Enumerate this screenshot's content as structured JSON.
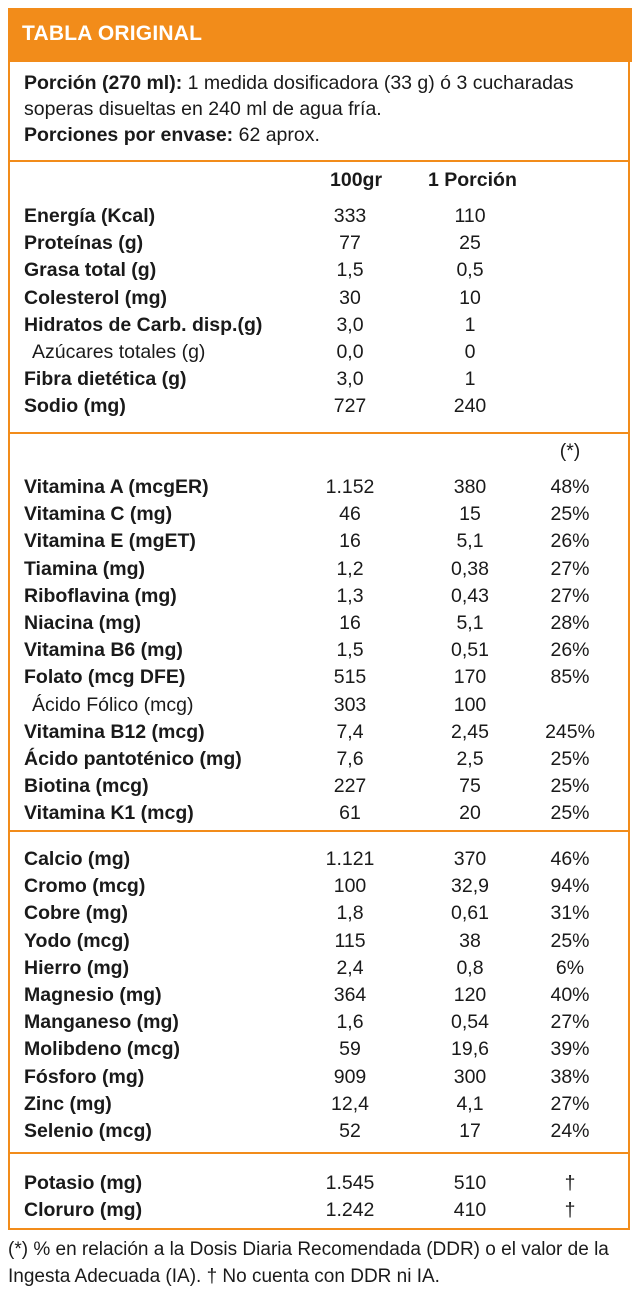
{
  "header": {
    "title": "TABLA ORIGINAL"
  },
  "serving": {
    "portion_label": "Porción (270 ml):",
    "portion_text": "1 medida dosificadora (33 g) ó 3 cucharadas soperas disueltas en 240 ml de agua fría.",
    "per_container_label": "Porciones por envase:",
    "per_container_text": "62 aprox."
  },
  "columns": {
    "per100": "100gr",
    "per_portion": "1 Porción",
    "pct_marker": "(*)"
  },
  "sections": [
    {
      "rows": [
        {
          "name": "Energía (Kcal)",
          "v100": "333",
          "vp": "110",
          "pct": "",
          "bold": true
        },
        {
          "name": "Proteínas (g)",
          "v100": "77",
          "vp": "25",
          "pct": "",
          "bold": true
        },
        {
          "name": "Grasa total (g)",
          "v100": "1,5",
          "vp": "0,5",
          "pct": "",
          "bold": true
        },
        {
          "name": "Colesterol (mg)",
          "v100": "30",
          "vp": "10",
          "pct": "",
          "bold": true
        },
        {
          "name": "Hidratos de Carb. disp.(g)",
          "v100": "3,0",
          "vp": "1",
          "pct": "",
          "bold": true
        },
        {
          "name": "Azúcares totales (g)",
          "v100": "0,0",
          "vp": "0",
          "pct": "",
          "bold": false
        },
        {
          "name": "Fibra dietética (g)",
          "v100": "3,0",
          "vp": "1",
          "pct": "",
          "bold": true
        },
        {
          "name": "Sodio (mg)",
          "v100": "727",
          "vp": "240",
          "pct": "",
          "bold": true
        }
      ]
    },
    {
      "rows": [
        {
          "name": "Vitamina A (mcgER)",
          "v100": "1.152",
          "vp": "380",
          "pct": "48%",
          "bold": true
        },
        {
          "name": "Vitamina C (mg)",
          "v100": "46",
          "vp": "15",
          "pct": "25%",
          "bold": true
        },
        {
          "name": "Vitamina E (mgET)",
          "v100": "16",
          "vp": "5,1",
          "pct": "26%",
          "bold": true
        },
        {
          "name": "Tiamina (mg)",
          "v100": "1,2",
          "vp": "0,38",
          "pct": "27%",
          "bold": true
        },
        {
          "name": "Riboflavina (mg)",
          "v100": "1,3",
          "vp": "0,43",
          "pct": "27%",
          "bold": true
        },
        {
          "name": "Niacina (mg)",
          "v100": "16",
          "vp": "5,1",
          "pct": "28%",
          "bold": true
        },
        {
          "name": "Vitamina B6 (mg)",
          "v100": "1,5",
          "vp": "0,51",
          "pct": "26%",
          "bold": true
        },
        {
          "name": "Folato (mcg DFE)",
          "v100": "515",
          "vp": "170",
          "pct": "85%",
          "bold": true
        },
        {
          "name": "Ácido Fólico (mcg)",
          "v100": "303",
          "vp": "100",
          "pct": "",
          "bold": false
        },
        {
          "name": "Vitamina B12 (mcg)",
          "v100": "7,4",
          "vp": "2,45",
          "pct": "245%",
          "bold": true
        },
        {
          "name": "Ácido pantoténico (mg)",
          "v100": "7,6",
          "vp": "2,5",
          "pct": "25%",
          "bold": true
        },
        {
          "name": "Biotina (mcg)",
          "v100": "227",
          "vp": "75",
          "pct": "25%",
          "bold": true
        },
        {
          "name": "Vitamina K1 (mcg)",
          "v100": "61",
          "vp": "20",
          "pct": "25%",
          "bold": true
        }
      ]
    },
    {
      "rows": [
        {
          "name": "Calcio (mg)",
          "v100": "1.121",
          "vp": "370",
          "pct": "46%",
          "bold": true
        },
        {
          "name": "Cromo (mcg)",
          "v100": "100",
          "vp": "32,9",
          "pct": "94%",
          "bold": true
        },
        {
          "name": "Cobre (mg)",
          "v100": "1,8",
          "vp": "0,61",
          "pct": "31%",
          "bold": true
        },
        {
          "name": "Yodo (mcg)",
          "v100": "115",
          "vp": "38",
          "pct": "25%",
          "bold": true
        },
        {
          "name": "Hierro (mg)",
          "v100": "2,4",
          "vp": "0,8",
          "pct": "6%",
          "bold": true
        },
        {
          "name": "Magnesio (mg)",
          "v100": "364",
          "vp": "120",
          "pct": "40%",
          "bold": true
        },
        {
          "name": "Manganeso (mg)",
          "v100": "1,6",
          "vp": "0,54",
          "pct": "27%",
          "bold": true
        },
        {
          "name": "Molibdeno (mcg)",
          "v100": "59",
          "vp": "19,6",
          "pct": "39%",
          "bold": true
        },
        {
          "name": "Fósforo (mg)",
          "v100": "909",
          "vp": "300",
          "pct": "38%",
          "bold": true
        },
        {
          "name": "Zinc (mg)",
          "v100": "12,4",
          "vp": "4,1",
          "pct": "27%",
          "bold": true
        },
        {
          "name": "Selenio (mcg)",
          "v100": "52",
          "vp": "17",
          "pct": "24%",
          "bold": true
        }
      ]
    },
    {
      "rows": [
        {
          "name": "Potasio (mg)",
          "v100": "1.545",
          "vp": "510",
          "pct": "†",
          "bold": true
        },
        {
          "name": "Cloruro (mg)",
          "v100": "1.242",
          "vp": "410",
          "pct": "†",
          "bold": true
        }
      ]
    }
  ],
  "footnote": "(*) % en relación a la Dosis Diaria Recomendada (DDR) o el valor de la Ingesta Adecuada (IA). † No cuenta con DDR ni IA.",
  "colors": {
    "accent": "#f28c1a",
    "text": "#1a1a1a"
  }
}
